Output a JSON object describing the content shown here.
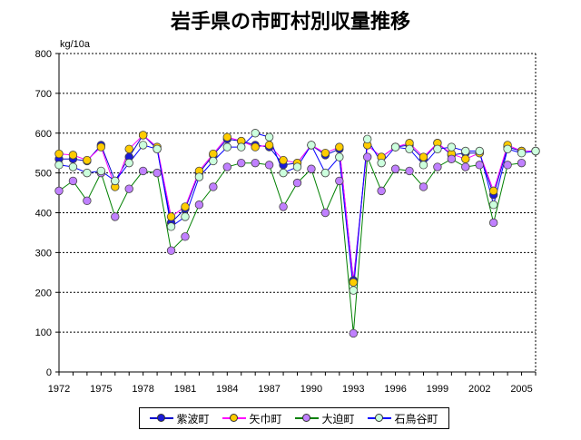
{
  "chart_data": {
    "type": "line",
    "title": "岩手県の市町村別収量推移",
    "ylabel": "kg/10a",
    "xlabel": "",
    "ylim": [
      0,
      800
    ],
    "yticks": [
      0,
      100,
      200,
      300,
      400,
      500,
      600,
      700,
      800
    ],
    "xticks": [
      1972,
      1975,
      1978,
      1981,
      1984,
      1987,
      1990,
      1993,
      1996,
      1999,
      2002,
      2005
    ],
    "grid": true,
    "legend_position": "bottom",
    "x": [
      1972,
      1973,
      1974,
      1975,
      1976,
      1977,
      1978,
      1979,
      1980,
      1981,
      1982,
      1983,
      1984,
      1985,
      1986,
      1987,
      1988,
      1989,
      1990,
      1991,
      1992,
      1993,
      1994,
      1995,
      1996,
      1997,
      1998,
      1999,
      2000,
      2001,
      2002,
      2003,
      2004,
      2005,
      2006
    ],
    "series": [
      {
        "name": "紫波町",
        "color": "#0000cc",
        "line_color": "#0000cc",
        "marker_fill": "#1a1ad8",
        "values": [
          535,
          535,
          530,
          570,
          480,
          540,
          595,
          560,
          375,
          410,
          500,
          545,
          585,
          580,
          570,
          565,
          520,
          525,
          570,
          545,
          560,
          230,
          570,
          540,
          565,
          570,
          535,
          575,
          545,
          550,
          550,
          445,
          565,
          555,
          555
        ]
      },
      {
        "name": "矢巾町",
        "color": "#ff00ff",
        "line_color": "#ff00ff",
        "marker_fill": "#ffcc00",
        "values": [
          548,
          545,
          532,
          565,
          465,
          560,
          595,
          565,
          390,
          415,
          505,
          548,
          590,
          580,
          565,
          570,
          532,
          525,
          570,
          550,
          565,
          225,
          570,
          540,
          565,
          575,
          540,
          575,
          548,
          535,
          550,
          455,
          570,
          555,
          555
        ]
      },
      {
        "name": "大迫町",
        "color": "#008000",
        "line_color": "#008000",
        "marker_fill": "#c080ff",
        "values": [
          455,
          480,
          430,
          500,
          390,
          460,
          505,
          500,
          305,
          340,
          420,
          465,
          515,
          525,
          525,
          520,
          415,
          475,
          510,
          400,
          480,
          97,
          540,
          455,
          510,
          505,
          465,
          515,
          535,
          515,
          520,
          375,
          520,
          525,
          null
        ]
      },
      {
        "name": "石鳥谷町",
        "color": "#0000ff",
        "line_color": "#0000ff",
        "marker_fill": "#ccffdd",
        "values": [
          520,
          515,
          500,
          505,
          480,
          525,
          570,
          560,
          365,
          390,
          490,
          530,
          565,
          565,
          600,
          590,
          500,
          515,
          570,
          500,
          540,
          205,
          585,
          525,
          565,
          560,
          520,
          560,
          565,
          555,
          555,
          420,
          560,
          550,
          555
        ]
      }
    ]
  }
}
